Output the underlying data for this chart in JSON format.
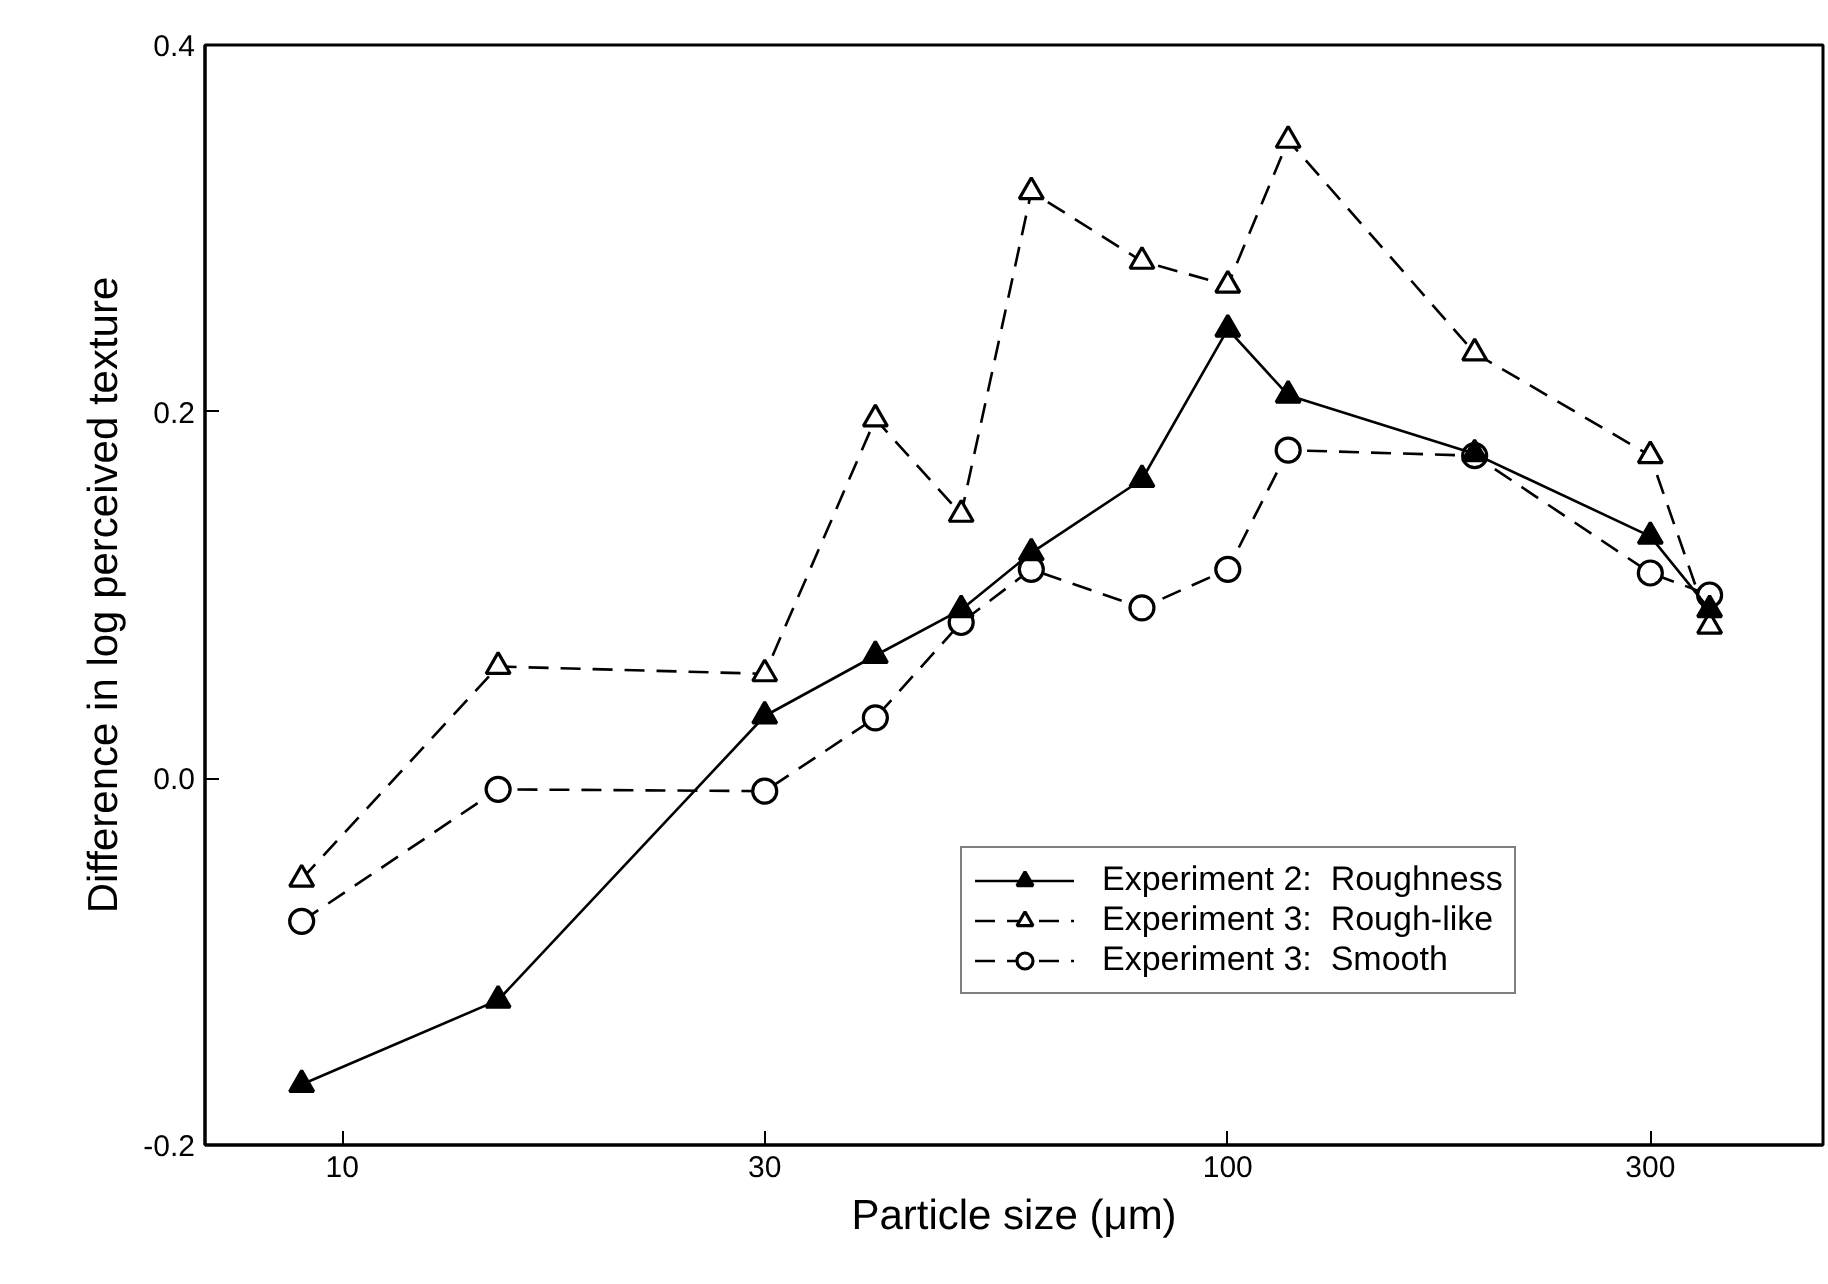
{
  "chart_data": {
    "type": "line",
    "xlabel": "Particle size (μm)",
    "ylabel": "Difference in log perceived texture",
    "log": "x",
    "xlim": [
      7,
      470
    ],
    "xticks": [
      10,
      30,
      100,
      300
    ],
    "ylim": [
      -0.2,
      0.4
    ],
    "yticks": [
      -0.2,
      {
        "value": 0,
        "label": "0.0"
      },
      0.2,
      0.4
    ],
    "grid": false,
    "legend": "bottom right",
    "series": [
      {
        "name": "Experiment 2:  Roughness",
        "color": "#000000",
        "marker": "triangle",
        "line_style": "solid",
        "x": [
          9,
          15,
          30,
          40,
          50,
          60,
          80,
          100,
          117,
          190,
          300,
          350
        ],
        "values": [
          -0.167,
          -0.121,
          0.034,
          0.067,
          0.092,
          0.123,
          0.163,
          0.245,
          0.209,
          0.177,
          0.132,
          0.092
        ]
      },
      {
        "name": "Experiment 3:  Rough-like",
        "color": "#000000",
        "marker": "triangle",
        "line_style": "dashed",
        "x": [
          9,
          15,
          30,
          40,
          50,
          60,
          80,
          100,
          117,
          190,
          300,
          350
        ],
        "values": [
          -0.055,
          0.061,
          0.057,
          0.196,
          0.144,
          0.32,
          0.282,
          0.269,
          0.348,
          0.232,
          0.176,
          0.083
        ]
      },
      {
        "name": "Experiment 3:  Smooth",
        "color": "#000000",
        "marker": "circle",
        "line_style": "dashed",
        "x": [
          9,
          15,
          30,
          40,
          50,
          60,
          80,
          100,
          117,
          190,
          300,
          350
        ],
        "values": [
          -0.078,
          -0.006,
          -0.007,
          0.033,
          0.085,
          0.114,
          0.093,
          0.114,
          0.179,
          0.176,
          0.112,
          0.1
        ]
      }
    ]
  }
}
